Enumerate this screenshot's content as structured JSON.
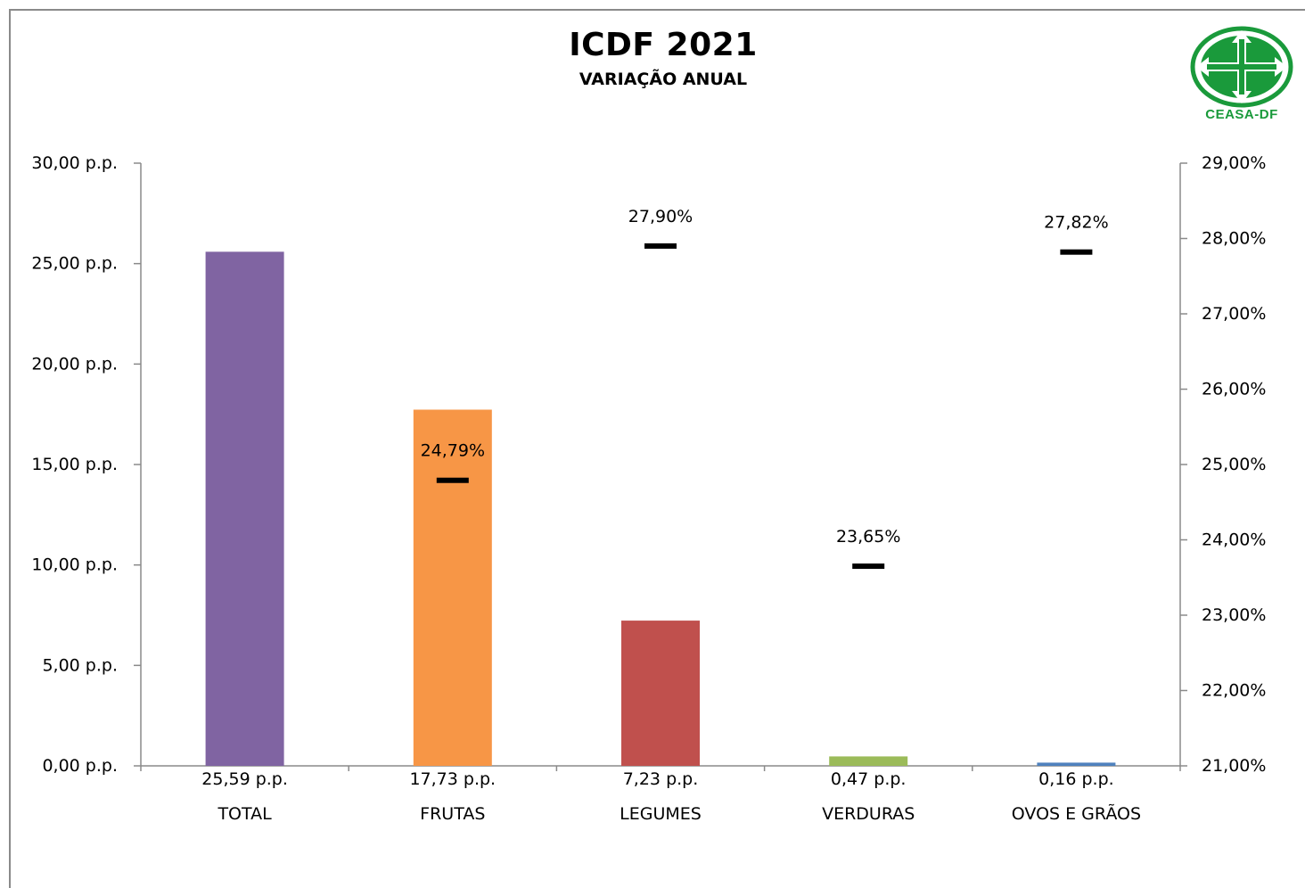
{
  "title": "ICDF 2021",
  "subtitle": "VARIAÇÃO ANUAL",
  "logo": {
    "text": "CEASA-DF",
    "color": "#1a9a3b",
    "icon": "ceasa-df-logo-icon"
  },
  "chart_data": {
    "type": "bar",
    "categories": [
      "TOTAL",
      "FRUTAS",
      "LEGUMES",
      "VERDURAS",
      "OVOS E GRÃOS"
    ],
    "bar_series": {
      "values": [
        25.59,
        17.73,
        7.23,
        0.47,
        0.16
      ],
      "value_labels": [
        "25,59 p.p.",
        "17,73 p.p.",
        "7,23 p.p.",
        "0,47 p.p.",
        "0,16 p.p."
      ],
      "colors": [
        "#8064a2",
        "#f79646",
        "#c0504d",
        "#9bbb59",
        "#4f81bd"
      ],
      "axis": "left"
    },
    "marker_series": {
      "values": [
        null,
        24.79,
        27.9,
        23.65,
        27.82
      ],
      "value_labels": [
        "",
        "24,79%",
        "27,90%",
        "23,65%",
        "27,82%"
      ],
      "marker": "dash",
      "color": "#000000",
      "axis": "right"
    },
    "left_axis": {
      "ylim": [
        0,
        30
      ],
      "ticks": [
        0,
        5,
        10,
        15,
        20,
        25,
        30
      ],
      "tick_labels": [
        "0,00 p.p.",
        "5,00 p.p.",
        "10,00 p.p.",
        "15,00 p.p.",
        "20,00 p.p.",
        "25,00 p.p.",
        "30,00 p.p."
      ]
    },
    "right_axis": {
      "ylim": [
        21,
        29
      ],
      "ticks": [
        21,
        22,
        23,
        24,
        25,
        26,
        27,
        28,
        29
      ],
      "tick_labels": [
        "21,00%",
        "22,00%",
        "23,00%",
        "24,00%",
        "25,00%",
        "26,00%",
        "27,00%",
        "28,00%",
        "29,00%"
      ]
    },
    "grid": false,
    "legend": "none"
  }
}
